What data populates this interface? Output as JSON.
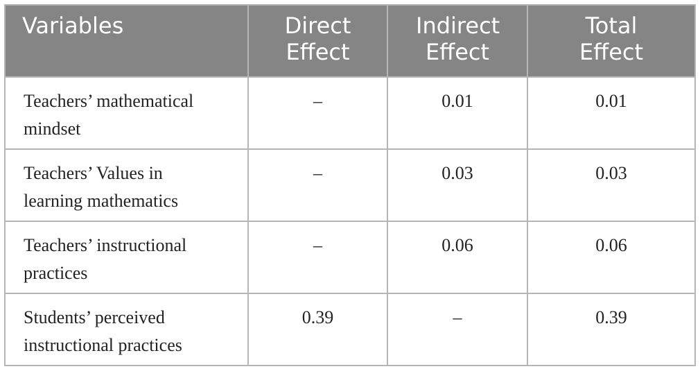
{
  "table": {
    "header": [
      "Variables",
      "Direct Effect",
      "Indirect Effect",
      "Total Effect"
    ],
    "rows": [
      [
        "Teachers’ mathematical mindset",
        "–",
        "0.01",
        "0.01"
      ],
      [
        "Teachers’ Values in learning mathematics",
        "–",
        "0.03",
        "0.03"
      ],
      [
        "Teachers’ instructional practices",
        "–",
        "0.06",
        "0.06"
      ],
      [
        "Students’ perceived instructional practices",
        "0.39",
        "–",
        "0.39"
      ]
    ]
  }
}
